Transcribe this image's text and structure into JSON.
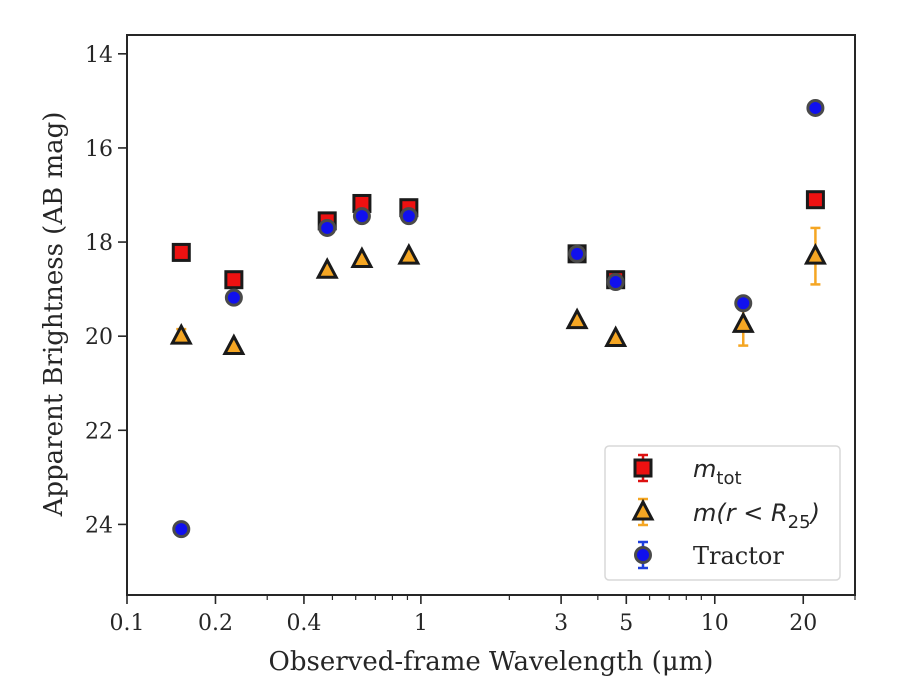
{
  "chart_data": {
    "type": "scatter",
    "xlabel": "Observed-frame Wavelength (μm)",
    "ylabel": "Apparent Brightness (AB mag)",
    "xscale": "log",
    "xlim": [
      0.1,
      30
    ],
    "ylim": [
      25.5,
      13.6
    ],
    "y_inverted": true,
    "x_ticks": [
      {
        "value": 0.1,
        "label": "0.1"
      },
      {
        "value": 0.2,
        "label": "0.2"
      },
      {
        "value": 0.4,
        "label": "0.4"
      },
      {
        "value": 1,
        "label": "1"
      },
      {
        "value": 3,
        "label": "3"
      },
      {
        "value": 5,
        "label": "5"
      },
      {
        "value": 10,
        "label": "10"
      },
      {
        "value": 20,
        "label": "20"
      }
    ],
    "x_minor_ticks": [
      0.3,
      0.5,
      0.6,
      0.7,
      0.8,
      0.9,
      2,
      4,
      6,
      7,
      8,
      9,
      30
    ],
    "y_ticks": [
      14,
      16,
      18,
      20,
      22,
      24
    ],
    "legend_position": "lower-right",
    "series": [
      {
        "name": "m_tot",
        "legend": {
          "base": "m",
          "sub": "tot"
        },
        "marker": "square",
        "face": "#ee1111",
        "edge": "#1a1a1a",
        "errcolor": "#dd1111",
        "x": [
          0.153,
          0.231,
          0.48,
          0.63,
          0.91,
          3.4,
          4.6,
          22.0
        ],
        "y": [
          18.22,
          18.8,
          17.55,
          17.18,
          17.27,
          18.25,
          18.8,
          17.1
        ],
        "err": [
          0.05,
          0.05,
          0.05,
          0.05,
          0.05,
          0.05,
          0.05,
          0.05
        ]
      },
      {
        "name": "m(r < R_25)",
        "legend": {
          "text": "m(r < R",
          "sub": "25",
          "close": ")"
        },
        "marker": "triangle",
        "face": "#f5a623",
        "edge": "#1a1a1a",
        "errcolor": "#f5a623",
        "x": [
          0.153,
          0.231,
          0.48,
          0.63,
          0.91,
          3.4,
          4.6,
          12.5,
          22.0
        ],
        "y": [
          20.0,
          20.22,
          18.6,
          18.37,
          18.3,
          19.67,
          20.05,
          19.75,
          18.3
        ],
        "err": [
          0.15,
          0.05,
          0.05,
          0.05,
          0.05,
          0.05,
          0.05,
          0.45,
          0.6
        ]
      },
      {
        "name": "Tractor",
        "legend": {
          "text": "Tractor"
        },
        "marker": "circle",
        "face": "#1010ee",
        "edge": "#4a4a4a",
        "errcolor": "#1f3fdd",
        "x": [
          0.153,
          0.231,
          0.48,
          0.63,
          0.91,
          3.4,
          4.6,
          12.5,
          22.0
        ],
        "y": [
          24.1,
          19.18,
          17.7,
          17.45,
          17.45,
          18.25,
          18.85,
          19.3,
          15.15
        ],
        "err": [
          0.03,
          0.03,
          0.03,
          0.03,
          0.03,
          0.03,
          0.03,
          0.03,
          0.03
        ]
      }
    ]
  }
}
